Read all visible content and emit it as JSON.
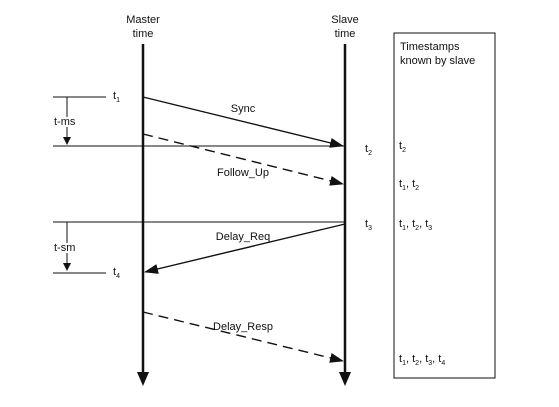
{
  "columns": {
    "master": {
      "line1": "Master",
      "line2": "time"
    },
    "slave": {
      "line1": "Slave",
      "line2": "time"
    }
  },
  "panel": {
    "line1": "Timestamps",
    "line2": "known  by slave"
  },
  "messages": {
    "sync": "Sync",
    "follow_up": "Follow_Up",
    "delay_req": "Delay_Req",
    "delay_resp": "Delay_Resp"
  },
  "intervals": {
    "t_ms": "t-ms",
    "t_sm": "t-sm"
  },
  "timestamps": {
    "t1": {
      "base": "t",
      "sub": "1"
    },
    "t2": {
      "base": "t",
      "sub": "2"
    },
    "t3": {
      "base": "t",
      "sub": "3"
    },
    "t4": {
      "base": "t",
      "sub": "4"
    }
  },
  "known": {
    "row1": [
      {
        "base": "t",
        "sub": "2"
      }
    ],
    "row2": [
      {
        "base": "t",
        "sub": "1"
      },
      {
        "sep": ", "
      },
      {
        "base": "t",
        "sub": "2"
      }
    ],
    "row3": [
      {
        "base": "t",
        "sub": "1"
      },
      {
        "sep": ", "
      },
      {
        "base": "t",
        "sub": "2"
      },
      {
        "sep": ", "
      },
      {
        "base": "t",
        "sub": "3"
      }
    ],
    "row4": [
      {
        "base": "t",
        "sub": "1"
      },
      {
        "sep": ", "
      },
      {
        "base": "t",
        "sub": "2"
      },
      {
        "sep": ", "
      },
      {
        "base": "t",
        "sub": "3"
      },
      {
        "sep": ", "
      },
      {
        "base": "t",
        "sub": "4"
      }
    ]
  }
}
